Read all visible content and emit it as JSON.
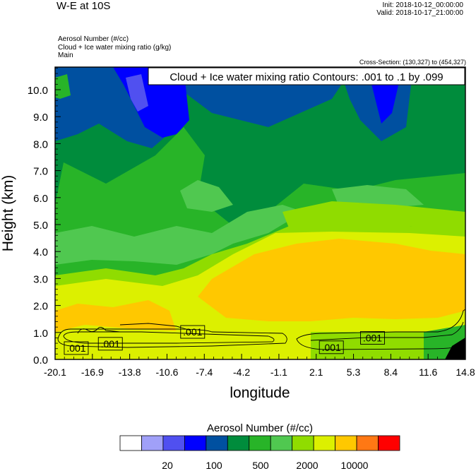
{
  "header": {
    "title": "W-E at 10S",
    "init": "Init: 2018-10-12_00:00:00",
    "valid": "Valid: 2018-10-17_21:00:00",
    "field1": "Aerosol Number   (#/cc)",
    "field2": "Cloud + Ice water mixing ratio   (g/kg)",
    "field3": "Main",
    "cross_section": "Cross-Section: (130,327) to (454,327)"
  },
  "chart_data": {
    "type": "heatmap",
    "title": "Cloud + Ice water mixing ratio Contours: .001 to .1 by .099",
    "xlabel": "longitude",
    "ylabel": "Height (km)",
    "x_ticks": [
      "-20.1",
      "-16.9",
      "-13.8",
      "-10.6",
      "-7.4",
      "-4.2",
      "-1.1",
      "2.1",
      "5.3",
      "8.4",
      "11.6",
      "14.8"
    ],
    "y_ticks": [
      "0.0",
      "1.0",
      "2.0",
      "3.0",
      "4.0",
      "5.0",
      "6.0",
      "7.0",
      "8.0",
      "9.0",
      "10.0"
    ],
    "xlim": [
      -20.1,
      14.8
    ],
    "ylim": [
      0.0,
      10.8
    ],
    "contour_labels": [
      {
        "text": ".001",
        "x": -18.3,
        "y": 0.42
      },
      {
        "text": ".001",
        "x": -15.4,
        "y": 0.58
      },
      {
        "text": ".001",
        "x": -8.4,
        "y": 1.02
      },
      {
        "text": ".001",
        "x": 3.4,
        "y": 0.45
      },
      {
        "text": ".001",
        "x": 6.9,
        "y": 0.8
      }
    ],
    "colorbar": {
      "title": "Aerosol Number  (#/cc)",
      "colors": [
        "#ffffff",
        "#a0a0f8",
        "#5050f0",
        "#0000ff",
        "#0050a0",
        "#008c3c",
        "#28b428",
        "#50c850",
        "#90dc00",
        "#dcf000",
        "#ffc800",
        "#ff7814",
        "#ff0000"
      ],
      "labels": [
        "20",
        "100",
        "500",
        "2000",
        "10000"
      ]
    }
  }
}
